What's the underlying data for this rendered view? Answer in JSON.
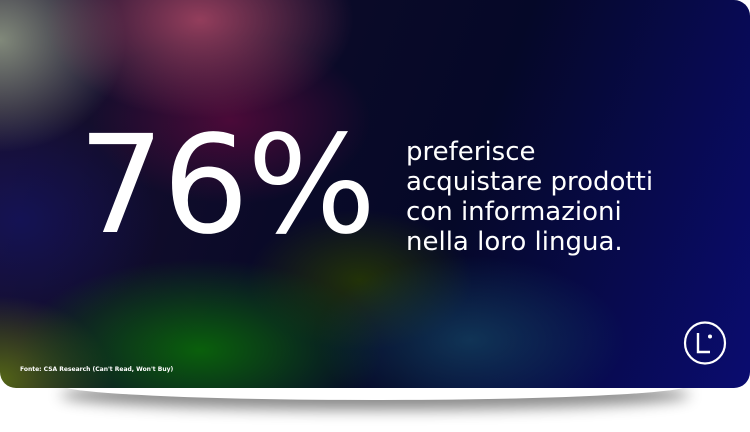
{
  "stat": {
    "value": "76%",
    "lines": [
      "preferisce",
      "acquistare prodotti",
      "con informazioni",
      "nella loro lingua."
    ]
  },
  "source": "Fonte: CSA Research (Can't Read, Won't Buy)",
  "logo": {
    "icon": "circle-L-logo",
    "text": "L"
  }
}
